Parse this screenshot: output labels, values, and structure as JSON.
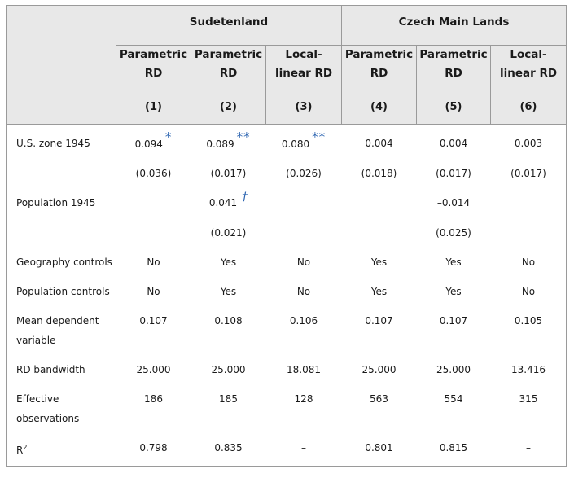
{
  "groups": {
    "left": "Sudetenland",
    "right": "Czech Main Lands"
  },
  "columns": [
    {
      "method": "Parametric RD",
      "number": "(1)"
    },
    {
      "method": "Parametric RD",
      "number": "(2)"
    },
    {
      "method": "Local-linear RD",
      "number": "(3)"
    },
    {
      "method": "Parametric RD",
      "number": "(4)"
    },
    {
      "method": "Parametric RD",
      "number": "(5)"
    },
    {
      "method": "Local-linear RD",
      "number": "(6)"
    }
  ],
  "method_lines": {
    "parametric": [
      "Parametric",
      "RD"
    ],
    "local": [
      "Local-",
      "linear RD"
    ]
  },
  "rows": {
    "us_zone": {
      "label": "U.S. zone 1945",
      "values": [
        "0.094",
        "0.089",
        "0.080",
        "0.004",
        "0.004",
        "0.003"
      ],
      "marks": [
        "*",
        "**",
        "**",
        "",
        "",
        ""
      ],
      "se": [
        "(0.036)",
        "(0.017)",
        "(0.026)",
        "(0.018)",
        "(0.017)",
        "(0.017)"
      ]
    },
    "population": {
      "label": "Population 1945",
      "values": [
        "",
        "0.041",
        "",
        "",
        "–0.014",
        ""
      ],
      "marks": [
        "",
        "†",
        "",
        "",
        "",
        ""
      ],
      "se": [
        "",
        "(0.021)",
        "",
        "",
        "(0.025)",
        ""
      ]
    },
    "geography_controls": {
      "label": "Geography controls",
      "values": [
        "No",
        "Yes",
        "No",
        "Yes",
        "Yes",
        "No"
      ]
    },
    "population_controls": {
      "label": "Population controls",
      "values": [
        "No",
        "Yes",
        "No",
        "Yes",
        "Yes",
        "No"
      ]
    },
    "mean_dep": {
      "label_lines": [
        "Mean dependent",
        "variable"
      ],
      "values": [
        "0.107",
        "0.108",
        "0.106",
        "0.107",
        "0.107",
        "0.105"
      ]
    },
    "bandwidth": {
      "label": "RD bandwidth",
      "values": [
        "25.000",
        "25.000",
        "18.081",
        "25.000",
        "25.000",
        "13.416"
      ]
    },
    "effective_obs": {
      "label_lines": [
        "Effective",
        "observations"
      ],
      "values": [
        "186",
        "185",
        "128",
        "563",
        "554",
        "315"
      ]
    },
    "r2": {
      "label_main": "R",
      "label_sup": "2",
      "values": [
        "0.798",
        "0.835",
        "–",
        "0.801",
        "0.815",
        "–"
      ]
    }
  },
  "colors": {
    "header_bg": "#e8e8e8",
    "border": "#9a9a9a",
    "significance": "#2a63b0"
  }
}
